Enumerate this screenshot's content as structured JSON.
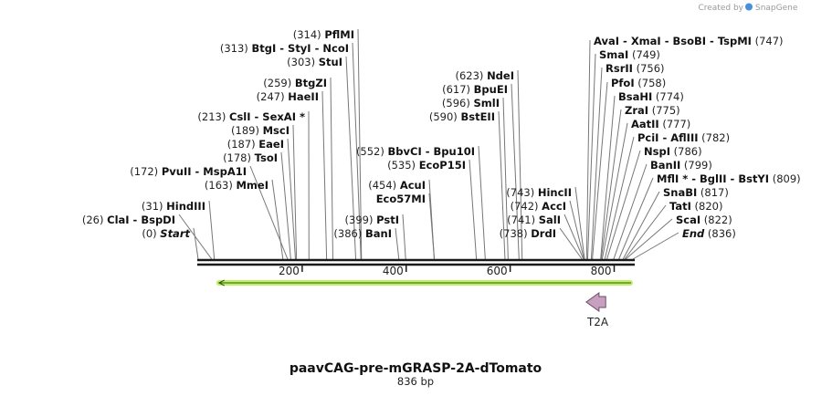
{
  "credit": "Created by",
  "credit_brand": "SnapGene",
  "map": {
    "title": "paavCAG-pre-mGRASP-2A-dTomato",
    "length_label": "836 bp",
    "length": 836,
    "axis_ticks": [
      {
        "pos": 200,
        "label": "200"
      },
      {
        "pos": 400,
        "label": "400"
      },
      {
        "pos": 600,
        "label": "600"
      },
      {
        "pos": 800,
        "label": "800"
      }
    ],
    "features": [
      {
        "name": "T2A",
        "start": 755,
        "end": 810,
        "direction": "reverse",
        "color": "#c8a0bf"
      }
    ],
    "orf": {
      "start": 40,
      "end": 836,
      "direction": "reverse",
      "color": "#c2ef6a"
    },
    "colors": {
      "backbone": "#1a1a1a",
      "leader": "#777777",
      "feature_stroke": "#6e4a66",
      "orf_line": "#2e5a0d"
    }
  },
  "chart_data": {
    "type": "restriction-map",
    "sequence_name": "paavCAG-pre-mGRASP-2A-dTomato",
    "length_bp": 836,
    "left_sites": [
      {
        "num": "(0)",
        "names": [
          "Start"
        ],
        "pos": 0
      },
      {
        "num": "(26)",
        "names": [
          "ClaI",
          "BspDI"
        ],
        "pos": 26
      },
      {
        "num": "(31)",
        "names": [
          "HindIII"
        ],
        "pos": 31
      },
      {
        "num": "(163)",
        "names": [
          "MmeI"
        ],
        "pos": 163
      },
      {
        "num": "(172)",
        "names": [
          "PvuII",
          "MspA1I"
        ],
        "pos": 172
      },
      {
        "num": "(178)",
        "names": [
          "TsoI"
        ],
        "pos": 178
      },
      {
        "num": "(187)",
        "names": [
          "EaeI"
        ],
        "pos": 187
      },
      {
        "num": "(189)",
        "names": [
          "MscI"
        ],
        "pos": 189
      },
      {
        "num": "(213)",
        "names": [
          "CslI",
          "SexAI *"
        ],
        "pos": 213
      },
      {
        "num": "(247)",
        "names": [
          "HaeII"
        ],
        "pos": 247
      },
      {
        "num": "(259)",
        "names": [
          "BtgZI"
        ],
        "pos": 259
      },
      {
        "num": "(303)",
        "names": [
          "StuI"
        ],
        "pos": 303
      },
      {
        "num": "(313)",
        "names": [
          "BtgI",
          "StyI",
          "NcoI"
        ],
        "pos": 313
      },
      {
        "num": "(314)",
        "names": [
          "PflMI"
        ],
        "pos": 314
      },
      {
        "num": "(386)",
        "names": [
          "BanI"
        ],
        "pos": 386
      },
      {
        "num": "(399)",
        "names": [
          "PstI"
        ],
        "pos": 399
      },
      {
        "num": "",
        "names": [
          "Eco57MI"
        ],
        "pos": 454
      },
      {
        "num": "(454)",
        "names": [
          "AcuI"
        ],
        "pos": 454
      },
      {
        "num": "(535)",
        "names": [
          "EcoP15I"
        ],
        "pos": 535
      },
      {
        "num": "(552)",
        "names": [
          "BbvCI",
          "Bpu10I"
        ],
        "pos": 552
      },
      {
        "num": "(590)",
        "names": [
          "BstEII"
        ],
        "pos": 590
      },
      {
        "num": "(596)",
        "names": [
          "SmlI"
        ],
        "pos": 596
      },
      {
        "num": "(617)",
        "names": [
          "BpuEI"
        ],
        "pos": 617
      },
      {
        "num": "(623)",
        "names": [
          "NdeI"
        ],
        "pos": 623
      },
      {
        "num": "(738)",
        "names": [
          "DrdI"
        ],
        "pos": 738
      },
      {
        "num": "(741)",
        "names": [
          "SalI"
        ],
        "pos": 741
      },
      {
        "num": "(742)",
        "names": [
          "AccI"
        ],
        "pos": 742
      },
      {
        "num": "(743)",
        "names": [
          "HincII"
        ],
        "pos": 743
      }
    ],
    "right_sites": [
      {
        "num": "(747)",
        "names": [
          "AvaI",
          "XmaI",
          "BsoBI",
          "TspMI"
        ],
        "pos": 747
      },
      {
        "num": "(749)",
        "names": [
          "SmaI"
        ],
        "pos": 749
      },
      {
        "num": "(756)",
        "names": [
          "RsrII"
        ],
        "pos": 756
      },
      {
        "num": "(758)",
        "names": [
          "PfoI"
        ],
        "pos": 758
      },
      {
        "num": "(774)",
        "names": [
          "BsaHI"
        ],
        "pos": 774
      },
      {
        "num": "(775)",
        "names": [
          "ZraI"
        ],
        "pos": 775
      },
      {
        "num": "(777)",
        "names": [
          "AatII"
        ],
        "pos": 777
      },
      {
        "num": "(782)",
        "names": [
          "PciI",
          "AflIII"
        ],
        "pos": 782
      },
      {
        "num": "(786)",
        "names": [
          "NspI"
        ],
        "pos": 786
      },
      {
        "num": "(799)",
        "names": [
          "BanII"
        ],
        "pos": 799
      },
      {
        "num": "(809)",
        "names": [
          "MflI *",
          "BglII",
          "BstYI"
        ],
        "pos": 809
      },
      {
        "num": "(817)",
        "names": [
          "SnaBI"
        ],
        "pos": 817
      },
      {
        "num": "(820)",
        "names": [
          "TatI"
        ],
        "pos": 820
      },
      {
        "num": "(822)",
        "names": [
          "ScaI"
        ],
        "pos": 822
      },
      {
        "num": "(836)",
        "names": [
          "End"
        ],
        "pos": 836
      }
    ]
  }
}
